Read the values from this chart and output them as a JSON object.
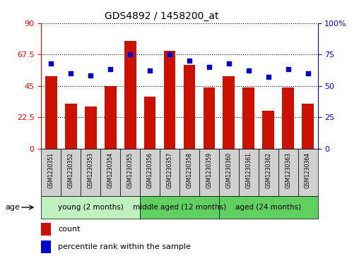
{
  "title": "GDS4892 / 1458200_at",
  "samples": [
    "GSM1230351",
    "GSM1230352",
    "GSM1230353",
    "GSM1230354",
    "GSM1230355",
    "GSM1230356",
    "GSM1230357",
    "GSM1230358",
    "GSM1230359",
    "GSM1230360",
    "GSM1230361",
    "GSM1230362",
    "GSM1230363",
    "GSM1230364"
  ],
  "counts": [
    52,
    32,
    30,
    45,
    77,
    37,
    70,
    60,
    44,
    52,
    44,
    27,
    44,
    32
  ],
  "percentiles": [
    68,
    60,
    58,
    63,
    75,
    62,
    75,
    70,
    65,
    68,
    62,
    57,
    63,
    60
  ],
  "groups": [
    {
      "label": "young (2 months)",
      "start": 0,
      "end": 5,
      "color": "#c0f0c0"
    },
    {
      "label": "middle aged (12 months)",
      "start": 5,
      "end": 9,
      "color": "#60d060"
    },
    {
      "label": "aged (24 months)",
      "start": 9,
      "end": 14,
      "color": "#60d060"
    }
  ],
  "ylim_left": [
    0,
    90
  ],
  "ylim_right": [
    0,
    100
  ],
  "yticks_left": [
    0,
    22.5,
    45,
    67.5,
    90
  ],
  "yticks_right": [
    0,
    25,
    50,
    75,
    100
  ],
  "bar_color": "#CC1100",
  "dot_color": "#0000CC",
  "background_color": "#ffffff",
  "grid_color": "#000000",
  "label_count": "count",
  "label_percentile": "percentile rank within the sample",
  "age_label": "age",
  "sample_box_color": "#d0d0d0"
}
